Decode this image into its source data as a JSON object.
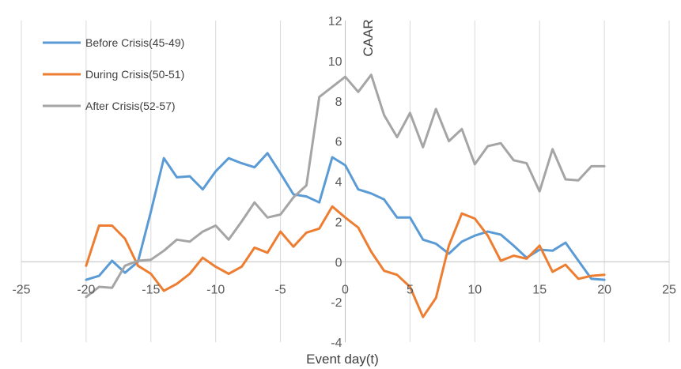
{
  "chart_data": {
    "type": "line",
    "xlabel": "Event day(t)",
    "ylabel": "CAAR",
    "xlim": [
      -25,
      25
    ],
    "ylim": [
      -4,
      12
    ],
    "xticks": [
      "-25",
      "-20",
      "-15",
      "-10",
      "-5",
      "0",
      "5",
      "10",
      "15",
      "20",
      "25"
    ],
    "yticks": [
      "-4",
      "-2",
      "0",
      "2",
      "4",
      "6",
      "8",
      "10",
      "12"
    ],
    "grid": "vertical",
    "legend_position": "top-left",
    "x": [
      -20,
      -19,
      -18,
      -17,
      -16,
      -15,
      -14,
      -13,
      -12,
      -11,
      -10,
      -9,
      -8,
      -7,
      -6,
      -5,
      -4,
      -3,
      -2,
      -1,
      0,
      1,
      2,
      3,
      4,
      5,
      6,
      7,
      8,
      9,
      10,
      11,
      12,
      13,
      14,
      15,
      16,
      17,
      18,
      19,
      20
    ],
    "series": [
      {
        "name": "Before Crisis(45-49)",
        "color": "#5b9bd5",
        "values": [
          -0.9,
          -0.7,
          0.05,
          -0.55,
          0.0,
          2.5,
          5.15,
          4.2,
          4.25,
          3.6,
          4.5,
          5.15,
          4.9,
          4.7,
          5.4,
          4.4,
          3.35,
          3.25,
          2.95,
          5.2,
          4.8,
          3.6,
          3.4,
          3.1,
          2.2,
          2.2,
          1.1,
          0.9,
          0.4,
          1.0,
          1.3,
          1.5,
          1.35,
          0.8,
          0.2,
          0.6,
          0.55,
          0.95,
          0.05,
          -0.85,
          -0.9
        ]
      },
      {
        "name": "During Crisis(50-51)",
        "color": "#ed7d31",
        "values": [
          -0.2,
          1.8,
          1.8,
          1.15,
          -0.2,
          -0.6,
          -1.45,
          -1.1,
          -0.6,
          0.2,
          -0.25,
          -0.6,
          -0.25,
          0.7,
          0.45,
          1.5,
          0.75,
          1.45,
          1.65,
          2.75,
          2.2,
          1.7,
          0.5,
          -0.45,
          -0.65,
          -1.25,
          -2.75,
          -1.8,
          0.8,
          2.4,
          2.15,
          1.3,
          0.05,
          0.3,
          0.15,
          0.8,
          -0.5,
          -0.15,
          -0.85,
          -0.7,
          -0.65
        ]
      },
      {
        "name": "After Crisis(52-57)",
        "color": "#a5a5a5",
        "values": [
          -1.75,
          -1.25,
          -1.3,
          -0.2,
          0.05,
          0.1,
          0.55,
          1.1,
          1.0,
          1.5,
          1.8,
          1.1,
          2.0,
          2.95,
          2.2,
          2.35,
          3.2,
          3.8,
          8.2,
          8.7,
          9.2,
          8.45,
          9.3,
          7.3,
          6.2,
          7.4,
          5.7,
          7.6,
          6.0,
          6.6,
          4.85,
          5.75,
          5.9,
          5.05,
          4.9,
          3.5,
          5.6,
          4.1,
          4.05,
          4.75,
          4.75
        ]
      }
    ]
  }
}
